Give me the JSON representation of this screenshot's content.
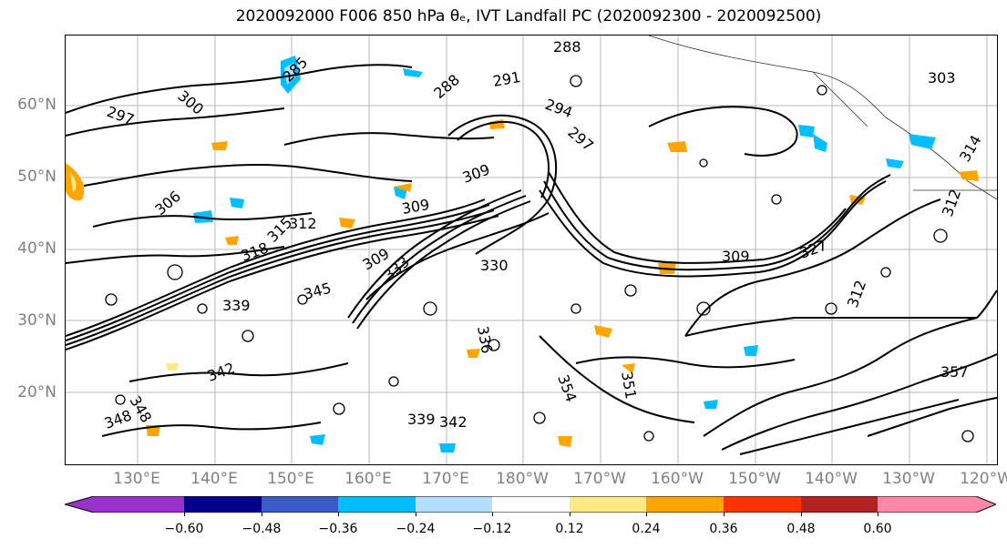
{
  "title": "2020092000 F006 850 hPa θₑ, IVT Landfall PC (2020092300 - 2020092500)",
  "lat_labels": [
    "60°N",
    "50°N",
    "40°N",
    "30°N",
    "20°N"
  ],
  "lon_labels": [
    "130°E",
    "140°E",
    "150°E",
    "160°E",
    "170°E",
    "180°W",
    "170°W",
    "160°W",
    "150°W",
    "140°W",
    "130°W",
    "120°W"
  ],
  "contour_labels": [
    "285",
    "288",
    "288",
    "291",
    "294",
    "297",
    "297",
    "300",
    "303",
    "306",
    "309",
    "309",
    "312",
    "312",
    "315",
    "318",
    "327",
    "330",
    "333",
    "336",
    "339",
    "339",
    "342",
    "342",
    "345",
    "348",
    "348",
    "351",
    "354",
    "357",
    "309",
    "309",
    "312",
    "314"
  ],
  "colorbar": {
    "ticks": [
      "−0.60",
      "−0.48",
      "−0.36",
      "−0.24",
      "−0.12",
      "0.12",
      "0.24",
      "0.36",
      "0.48",
      "0.60"
    ],
    "colors": [
      "#9932cc",
      "#00008b",
      "#3a5bc7",
      "#00bfff",
      "#b3e0ff",
      "#ffffff",
      "#ffe985",
      "#ffa500",
      "#ff3300",
      "#b22222",
      "#ff88aa"
    ]
  }
}
